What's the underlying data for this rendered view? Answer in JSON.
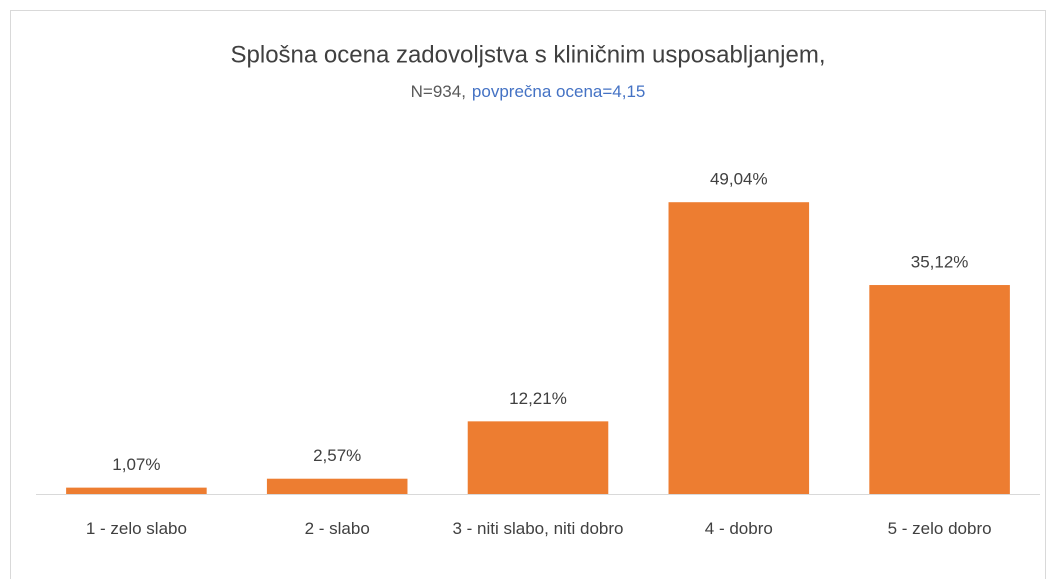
{
  "chart_data": {
    "type": "bar",
    "title": "Splošna ocena zadovoljstva s kliničnim usposabljanjem,",
    "subtitle": "N=934,",
    "subtitle_highlight": "povprečna ocena=4,15",
    "subtitle_highlight_color": "#4472c4",
    "categories": [
      "1 - zelo slabo",
      "2 - slabo",
      "3 - niti slabo, niti dobro",
      "4 - dobro",
      "5 - zelo dobro"
    ],
    "values": [
      1.07,
      2.57,
      12.21,
      49.04,
      35.12
    ],
    "value_labels": [
      "1,07%",
      "2,57%",
      "12,21%",
      "49,04%",
      "35,12%"
    ],
    "color": "#ed7d31",
    "ylim": [
      0,
      60
    ]
  }
}
